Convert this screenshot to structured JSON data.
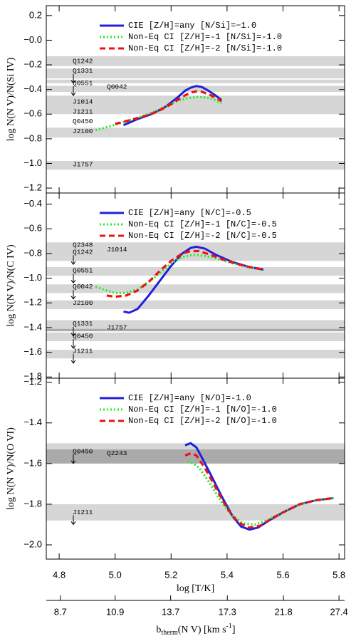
{
  "chart_data": [
    {
      "type": "line",
      "ylabel": "log N(N V)/N(Si IV)",
      "legend": "upper left",
      "xlim": [
        4.754,
        5.82
      ],
      "xticks": [
        4.8,
        {
          "value": 5,
          "label": "5.0"
        },
        5.2,
        5.4,
        5.6,
        5.8
      ],
      "ylim": [
        -1.24,
        0.28
      ],
      "yticks": [
        0.2,
        {
          "value": 0,
          "label": "−0.0"
        },
        {
          "value": -0.2,
          "label": "−0.2"
        },
        {
          "value": -0.4,
          "label": "−0.4"
        },
        {
          "value": -0.6,
          "label": "−0.6"
        },
        {
          "value": -0.8,
          "label": "−0.8"
        },
        {
          "value": -1.0,
          "label": "−1.0"
        },
        {
          "value": -1.2,
          "label": "−1.2"
        }
      ],
      "bands": [
        {
          "range": [
            -0.21,
            -0.13
          ],
          "color": "#d6d6d6"
        },
        {
          "range": [
            -0.31,
            -0.23
          ],
          "color": "#d6d6d6"
        },
        {
          "range": [
            -0.35,
            -0.32
          ],
          "color": "#d6d6d6"
        },
        {
          "range": [
            -0.42,
            -0.37
          ],
          "color": "#d6d6d6"
        },
        {
          "range": [
            -0.6,
            -0.45
          ],
          "color": "#d6d6d6"
        },
        {
          "range": [
            -0.79,
            -0.71
          ],
          "color": "#d6d6d6"
        },
        {
          "range": [
            -1.05,
            -0.98
          ],
          "color": "#d6d6d6"
        }
      ],
      "objects": [
        {
          "name": "Q1242",
          "value": -0.17,
          "limit": false
        },
        {
          "name": "Q1331",
          "value": -0.25,
          "limit": true
        },
        {
          "name": "Q0551",
          "value": -0.35,
          "limit": true
        },
        {
          "name": "Q0042",
          "value": -0.38,
          "limit": false
        },
        {
          "name": "J1014",
          "value": -0.5,
          "limit": false
        },
        {
          "name": "J1211",
          "value": -0.58,
          "limit": false
        },
        {
          "name": "Q0450",
          "value": -0.66,
          "limit": false
        },
        {
          "name": "J2100",
          "value": -0.74,
          "limit": false
        },
        {
          "name": "J1757",
          "value": -1.01,
          "limit": false
        }
      ],
      "series": [
        {
          "name": "CIE [Z/H]=any [N/Si]=−1.0",
          "color": "#2020dd",
          "dash": "solid",
          "x": [
            5.03,
            5.08,
            5.13,
            5.18,
            5.22,
            5.25,
            5.27,
            5.29,
            5.31,
            5.33,
            5.36,
            5.38
          ],
          "values": [
            -0.69,
            -0.64,
            -0.6,
            -0.54,
            -0.47,
            -0.41,
            -0.385,
            -0.372,
            -0.38,
            -0.405,
            -0.45,
            -0.485
          ]
        },
        {
          "name": "Non-Eq CI [Z/H]=-1 [N/Si]=-1.0",
          "color": "#22ee22",
          "dash": "dotted",
          "x": [
            4.93,
            4.98,
            5.03,
            5.08,
            5.13,
            5.18,
            5.22,
            5.26,
            5.3,
            5.34,
            5.38
          ],
          "values": [
            -0.73,
            -0.7,
            -0.665,
            -0.63,
            -0.59,
            -0.54,
            -0.495,
            -0.47,
            -0.46,
            -0.47,
            -0.51
          ]
        },
        {
          "name": "Non-Eq CI [Z/H]=-2 [N/Si]=-1.0",
          "color": "#ee1111",
          "dash": "dashed",
          "x": [
            5.0,
            5.05,
            5.1,
            5.15,
            5.2,
            5.24,
            5.27,
            5.29,
            5.31,
            5.34,
            5.37,
            5.38
          ],
          "values": [
            -0.68,
            -0.65,
            -0.62,
            -0.58,
            -0.52,
            -0.46,
            -0.425,
            -0.415,
            -0.418,
            -0.445,
            -0.48,
            -0.495
          ]
        }
      ]
    },
    {
      "type": "line",
      "ylabel": "log N(N V)/N(C IV)",
      "legend": "upper left",
      "xlim": [
        4.754,
        5.82
      ],
      "xticks": [
        4.8,
        {
          "value": 5,
          "label": "5.0"
        },
        5.2,
        5.4,
        5.6,
        5.8
      ],
      "ylim": [
        -1.81,
        -0.31
      ],
      "yticks": [
        {
          "value": -0.4,
          "label": "−0.4"
        },
        {
          "value": -0.6,
          "label": "−0.6"
        },
        {
          "value": -0.8,
          "label": "−0.8"
        },
        {
          "value": -1.0,
          "label": "−1.0"
        },
        {
          "value": -1.2,
          "label": "−1.2"
        },
        {
          "value": -1.4,
          "label": "−1.4"
        },
        {
          "value": -1.6,
          "label": "−1.6"
        },
        {
          "value": -1.8,
          "label": "−1.8"
        }
      ],
      "bands": [
        {
          "range": [
            -0.86,
            -0.71
          ],
          "color": "#d6d6d6"
        },
        {
          "range": [
            -0.98,
            -0.91
          ],
          "color": "#d6d6d6"
        },
        {
          "range": [
            -1.12,
            -1.05
          ],
          "color": "#d6d6d6"
        },
        {
          "range": [
            -1.25,
            -1.18
          ],
          "color": "#d6d6d6"
        },
        {
          "range": [
            -1.41,
            -1.34
          ],
          "color": "#d6d6d6"
        },
        {
          "range": [
            -1.43,
            -1.41
          ],
          "color": "#aaaaaa"
        },
        {
          "range": [
            -1.51,
            -1.44
          ],
          "color": "#d6d6d6"
        },
        {
          "range": [
            -1.65,
            -1.58
          ],
          "color": "#d6d6d6"
        }
      ],
      "objects": [
        {
          "name": "Q2348",
          "value": -0.73,
          "limit": false
        },
        {
          "name": "Q1242",
          "value": -0.79,
          "limit": true
        },
        {
          "name": "J1014",
          "value": -0.77,
          "limit": false
        },
        {
          "name": "Q0551",
          "value": -0.94,
          "limit": true
        },
        {
          "name": "Q0042",
          "value": -1.07,
          "limit": true
        },
        {
          "name": "J2100",
          "value": -1.2,
          "limit": false
        },
        {
          "name": "Q1331",
          "value": -1.37,
          "limit": true
        },
        {
          "name": "J1757",
          "value": -1.4,
          "limit": false
        },
        {
          "name": "Q0450",
          "value": -1.47,
          "limit": true
        },
        {
          "name": "J1211",
          "value": -1.59,
          "limit": true
        }
      ],
      "series": [
        {
          "name": "CIE [Z/H]=any [N/C]=-0.5",
          "color": "#2020dd",
          "dash": "solid",
          "x": [
            5.03,
            5.05,
            5.08,
            5.12,
            5.16,
            5.2,
            5.24,
            5.27,
            5.29,
            5.32,
            5.36,
            5.42,
            5.48,
            5.53
          ],
          "values": [
            -1.27,
            -1.28,
            -1.25,
            -1.14,
            -1.02,
            -0.9,
            -0.8,
            -0.755,
            -0.745,
            -0.76,
            -0.81,
            -0.87,
            -0.91,
            -0.93
          ]
        },
        {
          "name": "Non-Eq CI [Z/H]=-1 [N/C]=-0.5",
          "color": "#22ee22",
          "dash": "dotted",
          "x": [
            4.93,
            4.97,
            5.0,
            5.04,
            5.08,
            5.12,
            5.16,
            5.2,
            5.24,
            5.28,
            5.32,
            5.36,
            5.42,
            5.48,
            5.53
          ],
          "values": [
            -1.07,
            -1.1,
            -1.12,
            -1.12,
            -1.09,
            -1.03,
            -0.96,
            -0.88,
            -0.83,
            -0.81,
            -0.82,
            -0.84,
            -0.88,
            -0.91,
            -0.93
          ]
        },
        {
          "name": "Non-Eq CI [Z/H]=-2 [N/C]=-0.5",
          "color": "#ee1111",
          "dash": "dashed",
          "x": [
            4.97,
            5.0,
            5.04,
            5.08,
            5.12,
            5.16,
            5.2,
            5.24,
            5.27,
            5.3,
            5.34,
            5.4,
            5.46,
            5.53
          ],
          "values": [
            -1.14,
            -1.15,
            -1.14,
            -1.1,
            -1.03,
            -0.94,
            -0.86,
            -0.8,
            -0.78,
            -0.78,
            -0.81,
            -0.86,
            -0.9,
            -0.93
          ]
        }
      ]
    },
    {
      "type": "line",
      "ylabel": "log N(N V)/N(O VI)",
      "legend": "upper left",
      "xlabel": "log [T/K]",
      "xlim": [
        4.754,
        5.82
      ],
      "xticks": [
        4.8,
        {
          "value": 5,
          "label": "5.0"
        },
        5.2,
        5.4,
        5.6,
        5.8
      ],
      "ylim": [
        -2.07,
        -1.18
      ],
      "yticks": [
        {
          "value": -1.2,
          "label": "−1.2"
        },
        {
          "value": -1.4,
          "label": "−1.4"
        },
        {
          "value": -1.6,
          "label": "−1.6"
        },
        {
          "value": -1.8,
          "label": "−1.8"
        },
        {
          "value": -2.0,
          "label": "−2.0"
        }
      ],
      "x2log": true,
      "x2lim": [
        8.21,
        28.04
      ],
      "x2ticks": [
        8.7,
        10.9,
        13.7,
        17.3,
        21.8,
        27.4
      ],
      "x2label": {
        "main": "b",
        "sub": "therm",
        "mid": "(N V) [km s",
        "sup": "-1",
        "end": "]"
      },
      "bands": [
        {
          "range": [
            -1.53,
            -1.5
          ],
          "color": "#d6d6d6"
        },
        {
          "range": [
            -1.6,
            -1.53
          ],
          "color": "#aaaaaa"
        },
        {
          "range": [
            -1.88,
            -1.8
          ],
          "color": "#d6d6d6"
        }
      ],
      "objects": [
        {
          "name": "Q0450",
          "value": -1.54,
          "limit": true
        },
        {
          "name": "Q2243",
          "value": -1.55,
          "limit": false
        },
        {
          "name": "J1211",
          "value": -1.84,
          "limit": true
        }
      ],
      "series": [
        {
          "name": "CIE [Z/H]=any [N/O]=-1.0",
          "color": "#2020dd",
          "dash": "solid",
          "x": [
            5.25,
            5.27,
            5.29,
            5.31,
            5.34,
            5.38,
            5.42,
            5.45,
            5.48,
            5.51,
            5.55,
            5.6,
            5.66,
            5.72,
            5.78
          ],
          "values": [
            -1.51,
            -1.5,
            -1.52,
            -1.57,
            -1.65,
            -1.76,
            -1.86,
            -1.91,
            -1.925,
            -1.915,
            -1.88,
            -1.84,
            -1.8,
            -1.78,
            -1.77
          ]
        },
        {
          "name": "Non-Eq CI [Z/H]=-1 [N/O]=-1.0",
          "color": "#22ee22",
          "dash": "dotted",
          "x": [
            5.26,
            5.28,
            5.3,
            5.34,
            5.38,
            5.42,
            5.46,
            5.5,
            5.54,
            5.6,
            5.66,
            5.72,
            5.78
          ],
          "values": [
            -1.59,
            -1.6,
            -1.62,
            -1.7,
            -1.79,
            -1.86,
            -1.895,
            -1.9,
            -1.88,
            -1.84,
            -1.8,
            -1.78,
            -1.77
          ]
        },
        {
          "name": "Non-Eq CI [Z/H]=-2 [N/O]=-1.0",
          "color": "#ee1111",
          "dash": "dashed",
          "x": [
            5.25,
            5.27,
            5.29,
            5.32,
            5.36,
            5.4,
            5.44,
            5.48,
            5.52,
            5.56,
            5.6,
            5.66,
            5.72,
            5.78
          ],
          "values": [
            -1.56,
            -1.55,
            -1.56,
            -1.62,
            -1.72,
            -1.82,
            -1.89,
            -1.915,
            -1.905,
            -1.87,
            -1.84,
            -1.8,
            -1.78,
            -1.77
          ]
        }
      ]
    }
  ]
}
